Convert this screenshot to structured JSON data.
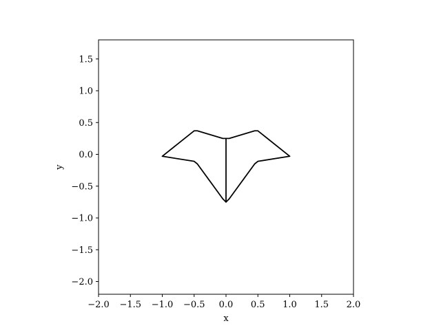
{
  "chart_data": {
    "type": "line",
    "title": "",
    "xlabel": "x",
    "ylabel": "y",
    "xlim": [
      -2.0,
      2.0
    ],
    "ylim": [
      -2.2,
      1.8
    ],
    "xticks": [
      -2.0,
      -1.5,
      -1.0,
      -0.5,
      0.0,
      0.5,
      1.0,
      1.5,
      2.0
    ],
    "yticks": [
      -2.0,
      -1.5,
      -1.0,
      -0.5,
      0.0,
      0.5,
      1.0,
      1.5
    ],
    "xtick_labels": [
      "−2.0",
      "−1.5",
      "−1.0",
      "−0.5",
      "0.0",
      "0.5",
      "1.0",
      "1.5",
      "2.0"
    ],
    "ytick_labels": [
      "−2.0",
      "−1.5",
      "−1.0",
      "−0.5",
      "0.0",
      "0.5",
      "1.0",
      "1.5"
    ],
    "grid": false,
    "line_color": "#000000",
    "series": [
      {
        "x": [
          0.0,
          -0.05,
          -0.45,
          -0.5,
          -1.0,
          -0.5,
          -0.45,
          -0.05,
          0.0,
          0.05,
          0.45,
          0.5,
          1.0,
          0.5,
          0.45,
          0.05,
          0.0
        ],
        "y": [
          0.25,
          0.25,
          0.37,
          0.37,
          -0.03,
          -0.11,
          -0.15,
          -0.7,
          -0.75,
          -0.7,
          -0.15,
          -0.11,
          -0.03,
          0.37,
          0.37,
          0.25,
          0.25
        ]
      },
      {
        "x": [
          0.0,
          0.0
        ],
        "y": [
          0.25,
          -0.75
        ]
      }
    ]
  }
}
